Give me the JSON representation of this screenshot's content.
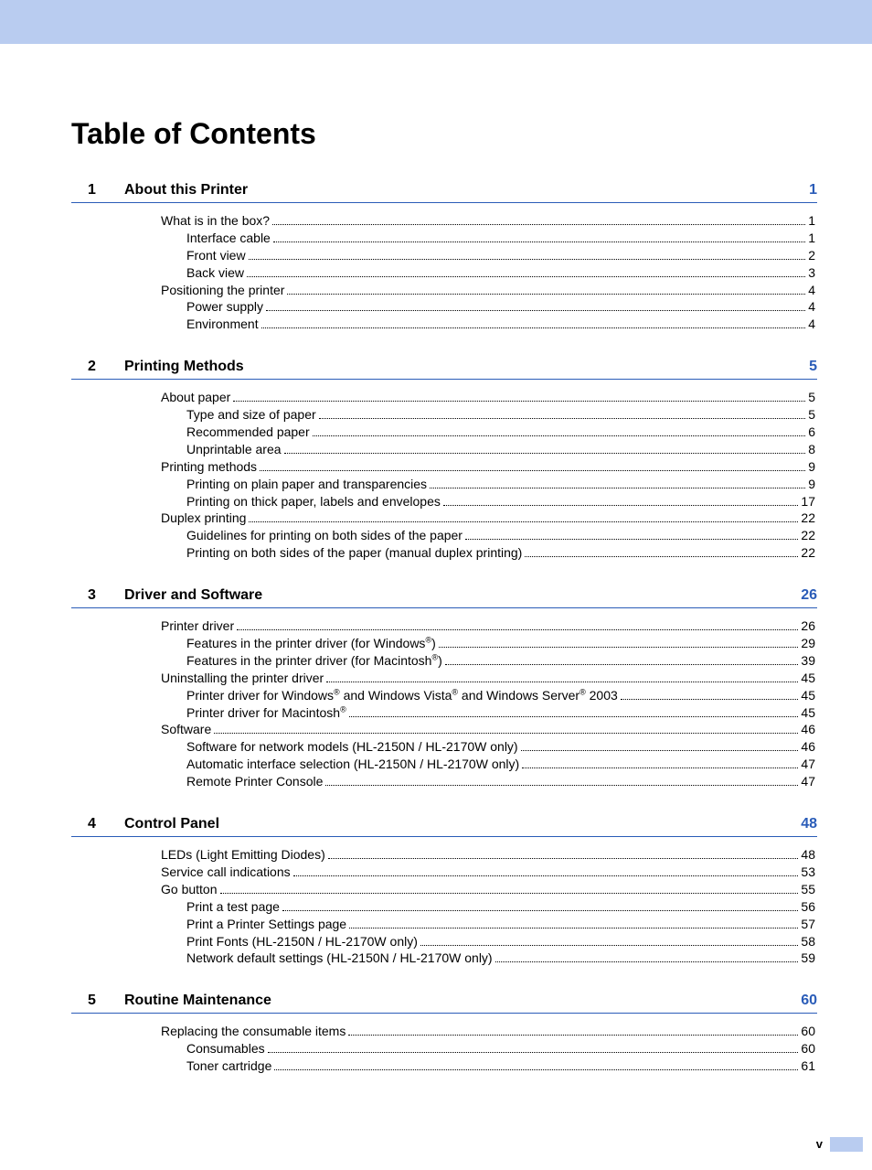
{
  "title": "Table of Contents",
  "page_roman": "v",
  "colors": {
    "topbar": "#b9ccf0",
    "rule": "#2a5cb8",
    "section_page": "#2a5cb8",
    "text": "#000000",
    "background": "#ffffff"
  },
  "typography": {
    "title_fontsize": 32,
    "section_fontsize": 16,
    "entry_fontsize": 14,
    "font_family": "Arial"
  },
  "sections": [
    {
      "num": "1",
      "title": "About this Printer",
      "page": "1",
      "entries": [
        {
          "level": 1,
          "text": "What is in the box?",
          "page": "1"
        },
        {
          "level": 2,
          "text": "Interface cable",
          "page": "1"
        },
        {
          "level": 2,
          "text": "Front view",
          "page": "2"
        },
        {
          "level": 2,
          "text": "Back view",
          "page": "3"
        },
        {
          "level": 1,
          "text": "Positioning the printer",
          "page": "4"
        },
        {
          "level": 2,
          "text": "Power supply",
          "page": "4"
        },
        {
          "level": 2,
          "text": "Environment",
          "page": "4"
        }
      ]
    },
    {
      "num": "2",
      "title": "Printing Methods",
      "page": "5",
      "entries": [
        {
          "level": 1,
          "text": "About paper",
          "page": "5"
        },
        {
          "level": 2,
          "text": "Type and size of paper",
          "page": "5"
        },
        {
          "level": 2,
          "text": "Recommended paper",
          "page": "6"
        },
        {
          "level": 2,
          "text": "Unprintable area",
          "page": "8"
        },
        {
          "level": 1,
          "text": "Printing methods",
          "page": "9"
        },
        {
          "level": 2,
          "text": "Printing on plain paper and transparencies",
          "page": "9"
        },
        {
          "level": 2,
          "text": "Printing on thick paper, labels and envelopes",
          "page": "17"
        },
        {
          "level": 1,
          "text": "Duplex printing",
          "page": "22"
        },
        {
          "level": 2,
          "text": "Guidelines for printing on both sides of the paper",
          "page": "22"
        },
        {
          "level": 2,
          "text": "Printing on both sides of the paper (manual duplex printing)",
          "page": "22"
        }
      ]
    },
    {
      "num": "3",
      "title": "Driver and Software",
      "page": "26",
      "entries": [
        {
          "level": 1,
          "text": "Printer driver",
          "page": "26"
        },
        {
          "level": 2,
          "html": "Features in the printer driver (for Windows<sup>®</sup>)",
          "page": "29"
        },
        {
          "level": 2,
          "html": "Features in the printer driver (for Macintosh<sup>®</sup>)",
          "page": "39"
        },
        {
          "level": 1,
          "text": "Uninstalling the printer driver",
          "page": "45"
        },
        {
          "level": 3,
          "html": "Printer driver for Windows<sup>®</sup> and Windows Vista<sup>®</sup> and Windows Server<sup>®</sup> 2003",
          "page": "45"
        },
        {
          "level": 2,
          "html": "Printer driver for Macintosh<sup>®</sup>",
          "page": "45"
        },
        {
          "level": 1,
          "text": "Software",
          "page": "46"
        },
        {
          "level": 2,
          "text": "Software for network models (HL-2150N / HL-2170W only)",
          "page": "46"
        },
        {
          "level": 2,
          "text": "Automatic interface selection (HL-2150N / HL-2170W only)",
          "page": "47"
        },
        {
          "level": 2,
          "text": "Remote Printer Console",
          "page": "47"
        }
      ]
    },
    {
      "num": "4",
      "title": "Control Panel",
      "page": "48",
      "entries": [
        {
          "level": 1,
          "text": "LEDs (Light Emitting Diodes)",
          "page": "48"
        },
        {
          "level": 1,
          "text": "Service call indications",
          "page": "53"
        },
        {
          "level": 1,
          "text": "Go button",
          "page": "55"
        },
        {
          "level": 2,
          "text": "Print a test page",
          "page": "56"
        },
        {
          "level": 2,
          "text": "Print a Printer Settings page",
          "page": "57"
        },
        {
          "level": 2,
          "text": "Print Fonts (HL-2150N / HL-2170W only)",
          "page": "58"
        },
        {
          "level": 2,
          "text": "Network default settings (HL-2150N / HL-2170W only)",
          "page": "59"
        }
      ]
    },
    {
      "num": "5",
      "title": "Routine Maintenance",
      "page": "60",
      "entries": [
        {
          "level": 1,
          "text": "Replacing the consumable items",
          "page": "60"
        },
        {
          "level": 2,
          "text": "Consumables",
          "page": "60"
        },
        {
          "level": 2,
          "text": "Toner cartridge",
          "page": "61"
        }
      ]
    }
  ]
}
